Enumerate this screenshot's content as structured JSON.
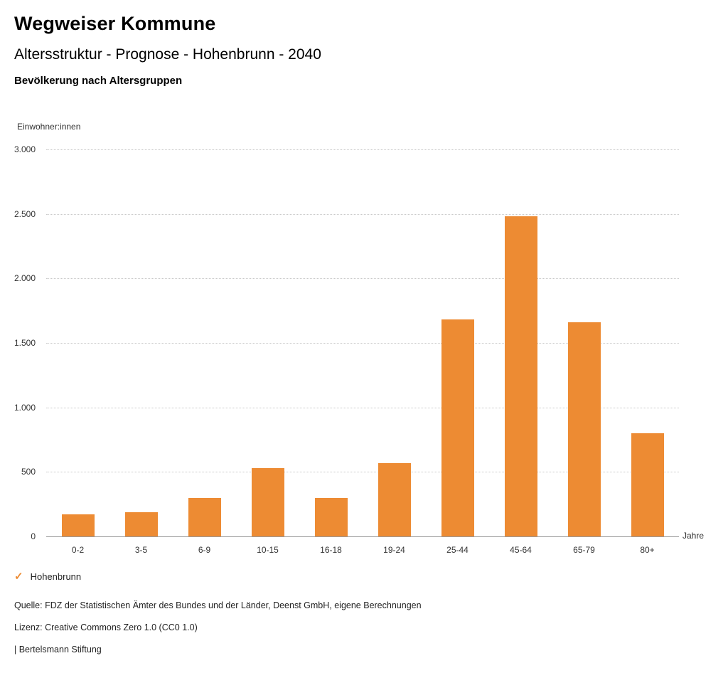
{
  "header": {
    "title": "Wegweiser Kommune",
    "subtitle": "Altersstruktur - Prognose - Hohenbrunn - 2040",
    "chart_heading": "Bevölkerung nach Altersgruppen"
  },
  "chart_data": {
    "type": "bar",
    "title": "Bevölkerung nach Altersgruppen",
    "categories": [
      "0-2",
      "3-5",
      "6-9",
      "10-15",
      "16-18",
      "19-24",
      "25-44",
      "45-64",
      "65-79",
      "80+"
    ],
    "series": [
      {
        "name": "Hohenbrunn",
        "values": [
          170,
          190,
          300,
          530,
          300,
          570,
          1680,
          2480,
          1660,
          800
        ]
      }
    ],
    "xlabel": "Jahre",
    "ylabel": "Einwohner:innen",
    "ylim": [
      0,
      3000
    ],
    "yticks": [
      0,
      500,
      1000,
      1500,
      2000,
      2500,
      3000
    ],
    "ytick_labels": [
      "0",
      "500",
      "1.000",
      "1.500",
      "2.000",
      "2.500",
      "3.000"
    ],
    "grid": "horizontal dotted",
    "legend_position": "bottom-left",
    "bar_color": "#ED8B33"
  },
  "legend": {
    "check_icon": "✓",
    "label": "Hohenbrunn"
  },
  "footer": {
    "source": "Quelle: FDZ der Statistischen Ämter des Bundes und der Länder, Deenst GmbH, eigene Berechnungen",
    "license": "Lizenz: Creative Commons Zero 1.0 (CC0 1.0)",
    "attribution": "| Bertelsmann Stiftung"
  }
}
